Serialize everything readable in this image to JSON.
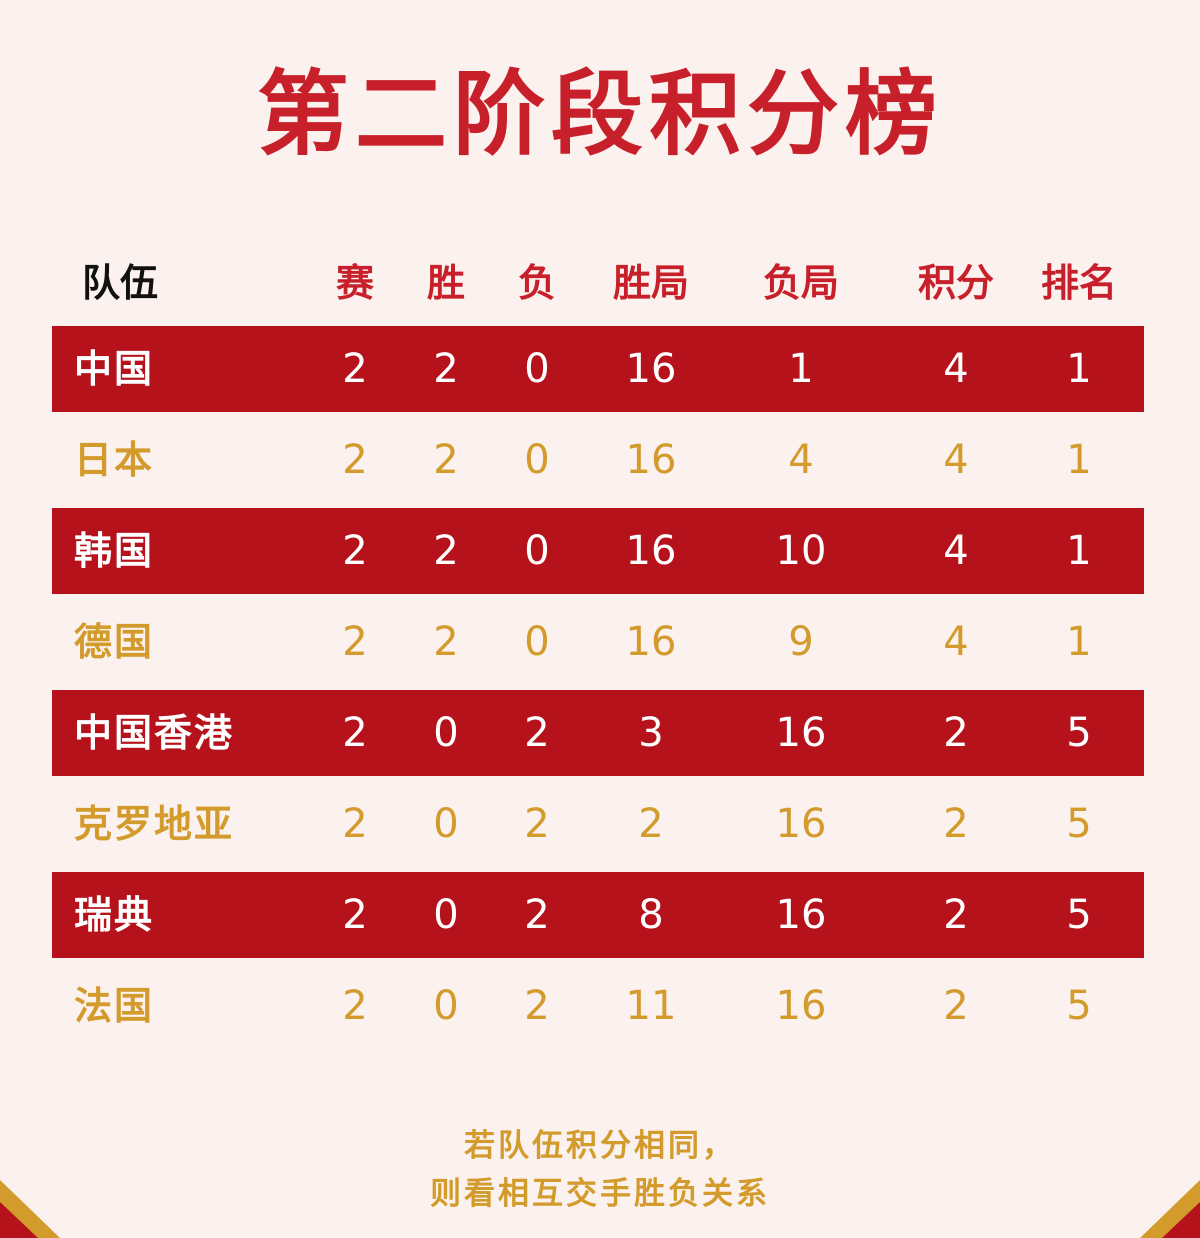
{
  "title": "第二阶段积分榜",
  "colors": {
    "accent_red": "#b5121b",
    "gold": "#d39a2c",
    "background": "#fbf1ee"
  },
  "headers": [
    "队伍",
    "赛",
    "胜",
    "负",
    "胜局",
    "负局",
    "积分",
    "排名"
  ],
  "rows": [
    {
      "team": "中国",
      "played": "2",
      "won": "2",
      "lost": "0",
      "games_won": "16",
      "games_lost": "1",
      "points": "4",
      "rank": "1"
    },
    {
      "team": "日本",
      "played": "2",
      "won": "2",
      "lost": "0",
      "games_won": "16",
      "games_lost": "4",
      "points": "4",
      "rank": "1"
    },
    {
      "team": "韩国",
      "played": "2",
      "won": "2",
      "lost": "0",
      "games_won": "16",
      "games_lost": "10",
      "points": "4",
      "rank": "1"
    },
    {
      "team": "德国",
      "played": "2",
      "won": "2",
      "lost": "0",
      "games_won": "16",
      "games_lost": "9",
      "points": "4",
      "rank": "1"
    },
    {
      "team": "中国香港",
      "played": "2",
      "won": "0",
      "lost": "2",
      "games_won": "3",
      "games_lost": "16",
      "points": "2",
      "rank": "5"
    },
    {
      "team": "克罗地亚",
      "played": "2",
      "won": "0",
      "lost": "2",
      "games_won": "2",
      "games_lost": "16",
      "points": "2",
      "rank": "5"
    },
    {
      "team": "瑞典",
      "played": "2",
      "won": "0",
      "lost": "2",
      "games_won": "8",
      "games_lost": "16",
      "points": "2",
      "rank": "5"
    },
    {
      "team": "法国",
      "played": "2",
      "won": "0",
      "lost": "2",
      "games_won": "11",
      "games_lost": "16",
      "points": "2",
      "rank": "5"
    }
  ],
  "footnote": [
    "若队伍积分相同，",
    "则看相互交手胜负关系"
  ]
}
